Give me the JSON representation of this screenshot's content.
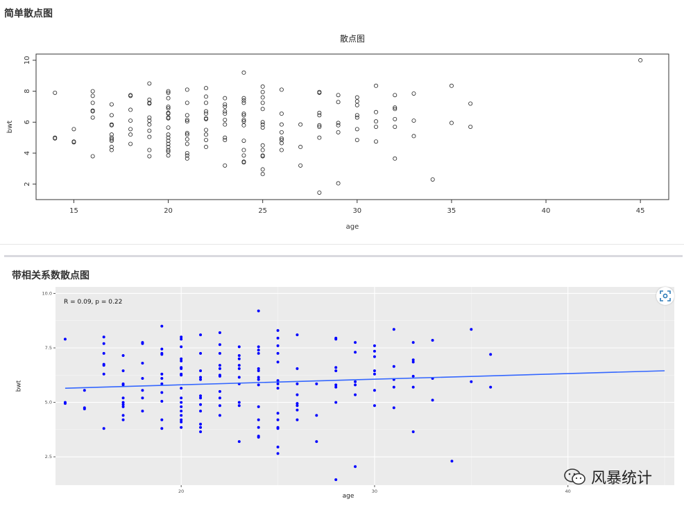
{
  "sections": [
    {
      "title": "简单散点图"
    },
    {
      "title": "带相关系数散点图"
    }
  ],
  "watermark": {
    "text": "风暴统计"
  },
  "colors": {
    "points_plot2": "#0000ff",
    "regression_line": "#3366ff",
    "ggplot_bg": "#ebebeb"
  },
  "chart_data": [
    {
      "type": "scatter",
      "title": "散点图",
      "xlabel": "age",
      "ylabel": "bwt",
      "xlim": [
        13,
        46.5
      ],
      "ylim": [
        1.0,
        10.4
      ],
      "x_ticks": [
        15,
        20,
        25,
        30,
        35,
        40,
        45
      ],
      "y_ticks": [
        2,
        4,
        6,
        8,
        10
      ],
      "grid": false,
      "marker": "open-circle",
      "points": [
        [
          14,
          7.9
        ],
        [
          14,
          5.0
        ],
        [
          14,
          4.95
        ],
        [
          15,
          5.55
        ],
        [
          15,
          4.75
        ],
        [
          15,
          4.7
        ],
        [
          16,
          8.0
        ],
        [
          16,
          7.7
        ],
        [
          16,
          7.25
        ],
        [
          16,
          6.75
        ],
        [
          16,
          6.7
        ],
        [
          16,
          6.3
        ],
        [
          16,
          3.8
        ],
        [
          17,
          7.15
        ],
        [
          17,
          6.45
        ],
        [
          17,
          5.85
        ],
        [
          17,
          5.8
        ],
        [
          17,
          5.2
        ],
        [
          17,
          5.0
        ],
        [
          17,
          4.9
        ],
        [
          17,
          4.8
        ],
        [
          17,
          4.4
        ],
        [
          17,
          4.2
        ],
        [
          18,
          7.75
        ],
        [
          18,
          7.7
        ],
        [
          18,
          6.8
        ],
        [
          18,
          6.1
        ],
        [
          18,
          5.55
        ],
        [
          18,
          5.2
        ],
        [
          18,
          4.6
        ],
        [
          19,
          8.5
        ],
        [
          19,
          7.45
        ],
        [
          19,
          7.25
        ],
        [
          19,
          7.2
        ],
        [
          19,
          6.3
        ],
        [
          19,
          6.1
        ],
        [
          19,
          5.85
        ],
        [
          19,
          5.45
        ],
        [
          19,
          5.05
        ],
        [
          19,
          4.2
        ],
        [
          19,
          3.8
        ],
        [
          20,
          8.0
        ],
        [
          20,
          7.9
        ],
        [
          20,
          7.55
        ],
        [
          20,
          7.0
        ],
        [
          20,
          6.9
        ],
        [
          20,
          6.6
        ],
        [
          20,
          6.55
        ],
        [
          20,
          6.3
        ],
        [
          20,
          6.25
        ],
        [
          20,
          5.65
        ],
        [
          20,
          5.2
        ],
        [
          20,
          5.0
        ],
        [
          20,
          4.8
        ],
        [
          20,
          4.6
        ],
        [
          20,
          4.4
        ],
        [
          20,
          4.2
        ],
        [
          20,
          4.1
        ],
        [
          20,
          3.85
        ],
        [
          21,
          8.1
        ],
        [
          21,
          7.25
        ],
        [
          21,
          6.45
        ],
        [
          21,
          6.15
        ],
        [
          21,
          6.05
        ],
        [
          21,
          5.3
        ],
        [
          21,
          5.2
        ],
        [
          21,
          4.9
        ],
        [
          21,
          4.6
        ],
        [
          21,
          4.0
        ],
        [
          21,
          3.85
        ],
        [
          21,
          3.65
        ],
        [
          22,
          8.2
        ],
        [
          22,
          7.65
        ],
        [
          22,
          7.25
        ],
        [
          22,
          6.7
        ],
        [
          22,
          6.55
        ],
        [
          22,
          6.25
        ],
        [
          22,
          6.2
        ],
        [
          22,
          5.5
        ],
        [
          22,
          5.2
        ],
        [
          22,
          4.85
        ],
        [
          22,
          4.4
        ],
        [
          23,
          7.55
        ],
        [
          23,
          7.15
        ],
        [
          23,
          7.0
        ],
        [
          23,
          6.7
        ],
        [
          23,
          6.55
        ],
        [
          23,
          6.15
        ],
        [
          23,
          5.85
        ],
        [
          23,
          5.0
        ],
        [
          23,
          4.85
        ],
        [
          23,
          3.2
        ],
        [
          24,
          9.2
        ],
        [
          24,
          7.55
        ],
        [
          24,
          7.4
        ],
        [
          24,
          7.25
        ],
        [
          24,
          6.55
        ],
        [
          24,
          6.45
        ],
        [
          24,
          6.15
        ],
        [
          24,
          6.05
        ],
        [
          24,
          5.8
        ],
        [
          24,
          4.8
        ],
        [
          24,
          4.2
        ],
        [
          24,
          3.85
        ],
        [
          24,
          3.45
        ],
        [
          24,
          3.4
        ],
        [
          25,
          8.3
        ],
        [
          25,
          7.95
        ],
        [
          25,
          7.6
        ],
        [
          25,
          7.25
        ],
        [
          25,
          6.85
        ],
        [
          25,
          6.0
        ],
        [
          25,
          5.85
        ],
        [
          25,
          5.65
        ],
        [
          25,
          4.5
        ],
        [
          25,
          4.2
        ],
        [
          25,
          3.85
        ],
        [
          25,
          3.8
        ],
        [
          25,
          2.95
        ],
        [
          25,
          2.65
        ],
        [
          26,
          8.1
        ],
        [
          26,
          6.55
        ],
        [
          26,
          5.85
        ],
        [
          26,
          5.35
        ],
        [
          26,
          4.95
        ],
        [
          26,
          4.85
        ],
        [
          26,
          4.65
        ],
        [
          26,
          4.2
        ],
        [
          27,
          5.85
        ],
        [
          27,
          4.4
        ],
        [
          27,
          3.2
        ],
        [
          28,
          7.95
        ],
        [
          28,
          7.9
        ],
        [
          28,
          6.6
        ],
        [
          28,
          6.45
        ],
        [
          28,
          5.8
        ],
        [
          28,
          5.7
        ],
        [
          28,
          5.0
        ],
        [
          28,
          1.45
        ],
        [
          29,
          7.75
        ],
        [
          29,
          7.3
        ],
        [
          29,
          5.95
        ],
        [
          29,
          5.8
        ],
        [
          29,
          5.35
        ],
        [
          29,
          2.05
        ],
        [
          30,
          7.6
        ],
        [
          30,
          7.35
        ],
        [
          30,
          7.1
        ],
        [
          30,
          6.45
        ],
        [
          30,
          6.3
        ],
        [
          30,
          5.55
        ],
        [
          30,
          4.85
        ],
        [
          31,
          8.35
        ],
        [
          31,
          6.65
        ],
        [
          31,
          6.05
        ],
        [
          31,
          5.7
        ],
        [
          31,
          4.75
        ],
        [
          32,
          7.75
        ],
        [
          32,
          6.95
        ],
        [
          32,
          6.85
        ],
        [
          32,
          6.2
        ],
        [
          32,
          5.7
        ],
        [
          32,
          3.65
        ],
        [
          33,
          7.85
        ],
        [
          33,
          6.1
        ],
        [
          33,
          5.1
        ],
        [
          34,
          2.3
        ],
        [
          35,
          8.35
        ],
        [
          35,
          5.95
        ],
        [
          36,
          7.2
        ],
        [
          36,
          5.7
        ],
        [
          45,
          10.0
        ]
      ]
    },
    {
      "type": "scatter",
      "title": "",
      "xlabel": "age",
      "ylabel": "bwt",
      "annotation": "R = 0.09, p = 0.22",
      "xlim": [
        13.5,
        45.5
      ],
      "ylim": [
        1.2,
        10.3
      ],
      "x_ticks": [
        20,
        30,
        40
      ],
      "y_ticks": [
        2.5,
        5.0,
        7.5,
        10.0
      ],
      "y_tick_labels": [
        "2.5",
        "5.0",
        "7.5",
        "10.0"
      ],
      "grid": true,
      "marker": "filled-circle",
      "regression_line": {
        "x": [
          14,
          45
        ],
        "y": [
          5.65,
          6.45
        ]
      },
      "points_same_as_chart": 0
    }
  ]
}
